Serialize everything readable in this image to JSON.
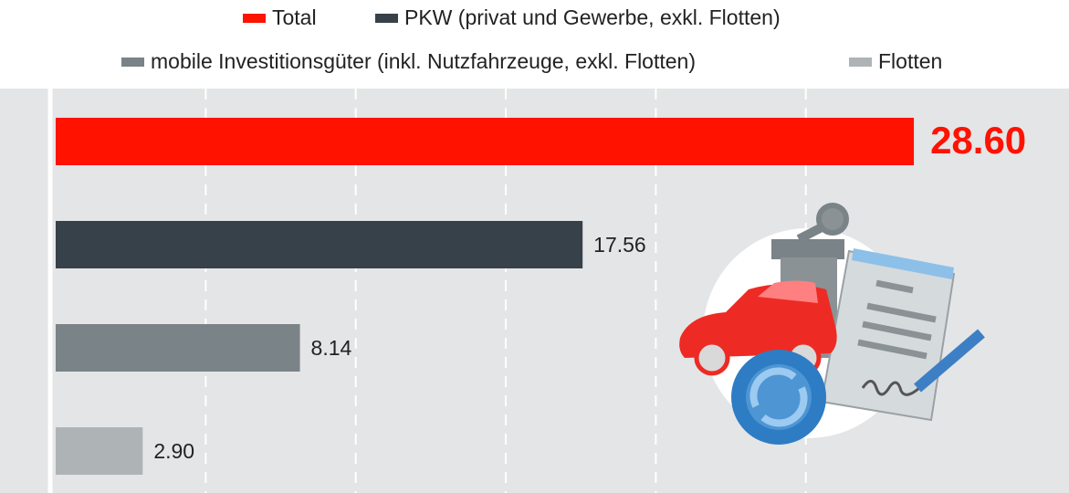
{
  "chart_data": {
    "type": "hbar",
    "series": [
      {
        "name": "Total",
        "color": "#ff1200",
        "values": [
          28.6
        ],
        "value_labels": [
          "28.60"
        ]
      },
      {
        "name": "PKW (privat und Gewerbe, exkl. Flotten)",
        "color": "#37414a",
        "values": [
          17.56
        ]
      },
      {
        "name": "mobile Investitionsgüter (inkl. Nutzfahrzeuge, exkl. Flotten)",
        "color": "#7a8387",
        "values": [
          8.14
        ]
      },
      {
        "name": "Flotten",
        "color": "#aeb3b6",
        "values": [
          2.9
        ],
        "value_labels": [
          "2.90"
        ]
      }
    ],
    "xlim": [
      0,
      33.77
    ],
    "xticks": [
      5,
      10,
      15,
      20,
      25
    ],
    "grid": true
  }
}
